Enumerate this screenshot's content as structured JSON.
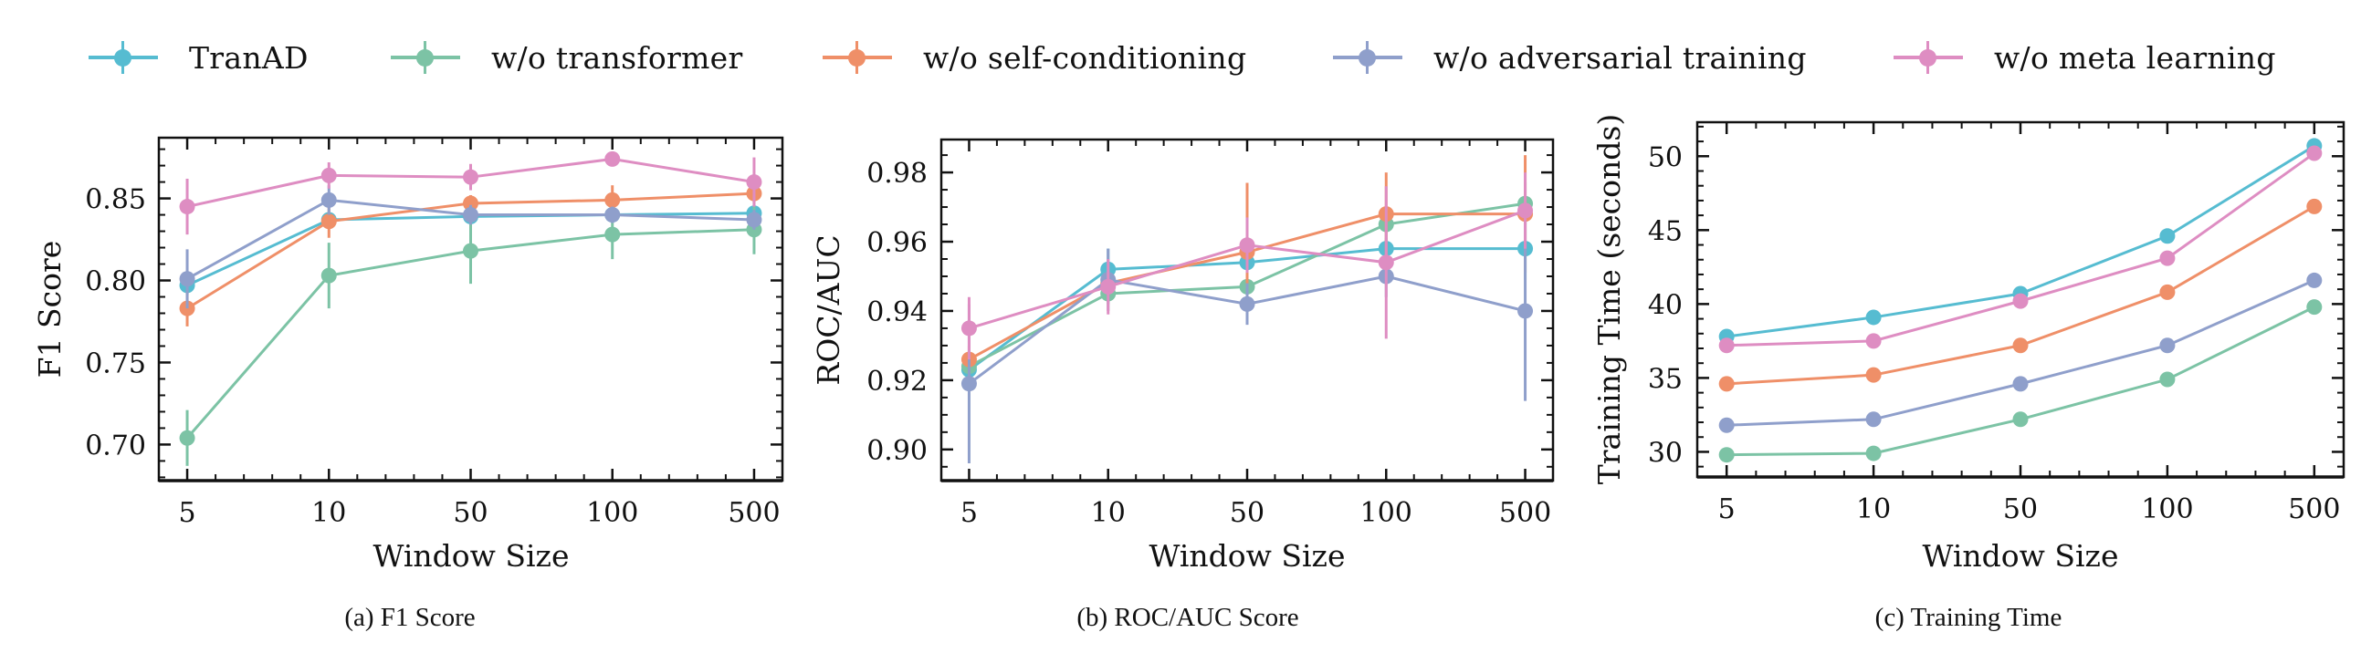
{
  "legend": [
    {
      "label": "TranAD",
      "color": "#56bcd1"
    },
    {
      "label": "w/o transformer",
      "color": "#7cc3a5"
    },
    {
      "label": "w/o self-conditioning",
      "color": "#ef8f68"
    },
    {
      "label": "w/o adversarial training",
      "color": "#8f9fcb"
    },
    {
      "label": "w/o meta learning",
      "color": "#de8dc2"
    }
  ],
  "chart_data": [
    {
      "type": "line",
      "title": "",
      "caption": "(a) F1 Score",
      "xlabel": "Window Size",
      "ylabel": "F1 Score",
      "categories": [
        "5",
        "10",
        "50",
        "100",
        "500"
      ],
      "ylim": [
        0.678,
        0.887
      ],
      "yticks": [
        "0.70",
        "0.75",
        "0.80",
        "0.85"
      ],
      "yticks_values": [
        0.7,
        0.75,
        0.8,
        0.85
      ],
      "yminor_step": 0.01,
      "grid": false,
      "legend_position": "top (shared)",
      "series": [
        {
          "name": "TranAD",
          "values": [
            0.797,
            0.837,
            0.839,
            0.84,
            0.841
          ],
          "errors": [
            0.006,
            0.004,
            0.006,
            0.004,
            0.014
          ]
        },
        {
          "name": "w/o transformer",
          "values": [
            0.704,
            0.803,
            0.818,
            0.828,
            0.831
          ],
          "errors": [
            0.017,
            0.02,
            0.02,
            0.015,
            0.015
          ]
        },
        {
          "name": "w/o self-conditioning",
          "values": [
            0.783,
            0.836,
            0.847,
            0.849,
            0.853
          ],
          "errors": [
            0.011,
            0.01,
            0.005,
            0.009,
            0.006
          ]
        },
        {
          "name": "w/o adversarial training",
          "values": [
            0.801,
            0.849,
            0.84,
            0.84,
            0.837
          ],
          "errors": [
            0.018,
            0.009,
            0.006,
            0.005,
            0.006
          ]
        },
        {
          "name": "w/o meta learning",
          "values": [
            0.845,
            0.864,
            0.863,
            0.874,
            0.86
          ],
          "errors": [
            0.017,
            0.008,
            0.008,
            0.002,
            0.015
          ]
        }
      ]
    },
    {
      "type": "line",
      "title": "",
      "caption": "(b) ROC/AUC Score",
      "xlabel": "Window Size",
      "ylabel": "ROC/AUC",
      "categories": [
        "5",
        "10",
        "50",
        "100",
        "500"
      ],
      "ylim": [
        0.891,
        0.9895
      ],
      "yticks": [
        "0.90",
        "0.92",
        "0.94",
        "0.96",
        "0.98"
      ],
      "yticks_values": [
        0.9,
        0.92,
        0.94,
        0.96,
        0.98
      ],
      "yminor_step": 0.005,
      "grid": false,
      "legend_position": "top (shared)",
      "series": [
        {
          "name": "TranAD",
          "values": [
            0.923,
            0.952,
            0.954,
            0.958,
            0.958
          ],
          "errors": [
            0.004,
            0.006,
            0.003,
            0.003,
            0.009
          ]
        },
        {
          "name": "w/o transformer",
          "values": [
            0.924,
            0.945,
            0.947,
            0.965,
            0.971
          ],
          "errors": [
            0.004,
            0.003,
            0.004,
            0.005,
            0.006
          ]
        },
        {
          "name": "w/o self-conditioning",
          "values": [
            0.926,
            0.948,
            0.957,
            0.968,
            0.968
          ],
          "errors": [
            0.004,
            0.003,
            0.02,
            0.012,
            0.017
          ]
        },
        {
          "name": "w/o adversarial training",
          "values": [
            0.919,
            0.949,
            0.942,
            0.95,
            0.94
          ],
          "errors": [
            0.023,
            0.009,
            0.006,
            0.006,
            0.026
          ]
        },
        {
          "name": "w/o meta learning",
          "values": [
            0.935,
            0.947,
            0.959,
            0.954,
            0.969
          ],
          "errors": [
            0.009,
            0.008,
            0.008,
            0.022,
            0.011
          ]
        }
      ]
    },
    {
      "type": "line",
      "title": "",
      "caption": "(c) Training Time",
      "xlabel": "Window Size",
      "ylabel": "Training Time (seconds)",
      "categories": [
        "5",
        "10",
        "50",
        "100",
        "500"
      ],
      "ylim": [
        28.3,
        52.3
      ],
      "yticks": [
        "30",
        "35",
        "40",
        "45",
        "50"
      ],
      "yticks_values": [
        30,
        35,
        40,
        45,
        50
      ],
      "yminor_step": 1,
      "grid": false,
      "legend_position": "top (shared)",
      "series": [
        {
          "name": "TranAD",
          "values": [
            37.8,
            39.1,
            40.7,
            44.6,
            50.7
          ],
          "errors": [
            0.3,
            0.3,
            0.3,
            0.3,
            0.3
          ]
        },
        {
          "name": "w/o transformer",
          "values": [
            29.8,
            29.9,
            32.2,
            34.9,
            39.8
          ],
          "errors": [
            0.2,
            0.2,
            0.2,
            0.2,
            0.2
          ]
        },
        {
          "name": "w/o self-conditioning",
          "values": [
            34.6,
            35.2,
            37.2,
            40.8,
            46.6
          ],
          "errors": [
            0.2,
            0.2,
            0.2,
            0.2,
            0.2
          ]
        },
        {
          "name": "w/o adversarial training",
          "values": [
            31.8,
            32.2,
            34.6,
            37.2,
            41.6
          ],
          "errors": [
            0.2,
            0.2,
            0.2,
            0.2,
            0.2
          ]
        },
        {
          "name": "w/o meta learning",
          "values": [
            37.2,
            37.5,
            40.2,
            43.1,
            50.2
          ],
          "errors": [
            0.3,
            0.3,
            0.3,
            0.3,
            0.3
          ]
        }
      ]
    }
  ]
}
